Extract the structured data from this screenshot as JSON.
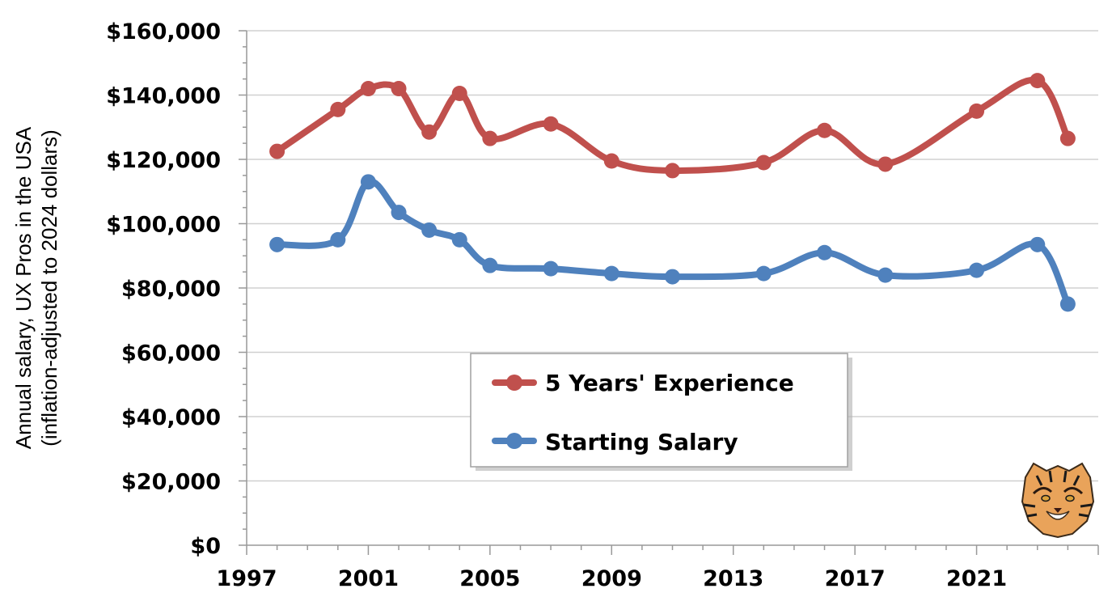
{
  "chart_data": {
    "type": "line",
    "ylabel_lines": [
      "Annual salary, UX Pros in the USA",
      "(inflation-adjusted  to 2024  dollars)"
    ],
    "xlim": [
      1997,
      2025
    ],
    "ylim": [
      0,
      160000
    ],
    "x_ticks": [
      1997,
      2001,
      2005,
      2009,
      2013,
      2017,
      2021
    ],
    "y_ticks": [
      0,
      20000,
      40000,
      60000,
      80000,
      100000,
      120000,
      140000,
      160000
    ],
    "y_tick_labels": [
      "$0",
      "$20,000",
      "$40,000",
      "$60,000",
      "$80,000",
      "$100,000",
      "$120,000",
      "$140,000",
      "$160,000"
    ],
    "grid": "horizontal",
    "legend_position": "center",
    "series": [
      {
        "name": "5 Years' Experience",
        "color": "#c0504d",
        "points": [
          [
            1998,
            122500
          ],
          [
            2000,
            135500
          ],
          [
            2001,
            142000
          ],
          [
            2002,
            142000
          ],
          [
            2003,
            128500
          ],
          [
            2004,
            140500
          ],
          [
            2005,
            126500
          ],
          [
            2007,
            131000
          ],
          [
            2009,
            119500
          ],
          [
            2011,
            116500
          ],
          [
            2014,
            119000
          ],
          [
            2016,
            129000
          ],
          [
            2018,
            118500
          ],
          [
            2021,
            135000
          ],
          [
            2023,
            144500
          ],
          [
            2024,
            126500
          ]
        ]
      },
      {
        "name": "Starting Salary",
        "color": "#4f81bd",
        "points": [
          [
            1998,
            93500
          ],
          [
            2000,
            95000
          ],
          [
            2001,
            113000
          ],
          [
            2002,
            103500
          ],
          [
            2003,
            98000
          ],
          [
            2004,
            95000
          ],
          [
            2005,
            87000
          ],
          [
            2007,
            86000
          ],
          [
            2009,
            84500
          ],
          [
            2011,
            83500
          ],
          [
            2014,
            84500
          ],
          [
            2016,
            91000
          ],
          [
            2018,
            84000
          ],
          [
            2021,
            85500
          ],
          [
            2023,
            93500
          ],
          [
            2024,
            75000
          ]
        ]
      }
    ]
  },
  "logo": {
    "icon": "tiger-head-icon"
  }
}
